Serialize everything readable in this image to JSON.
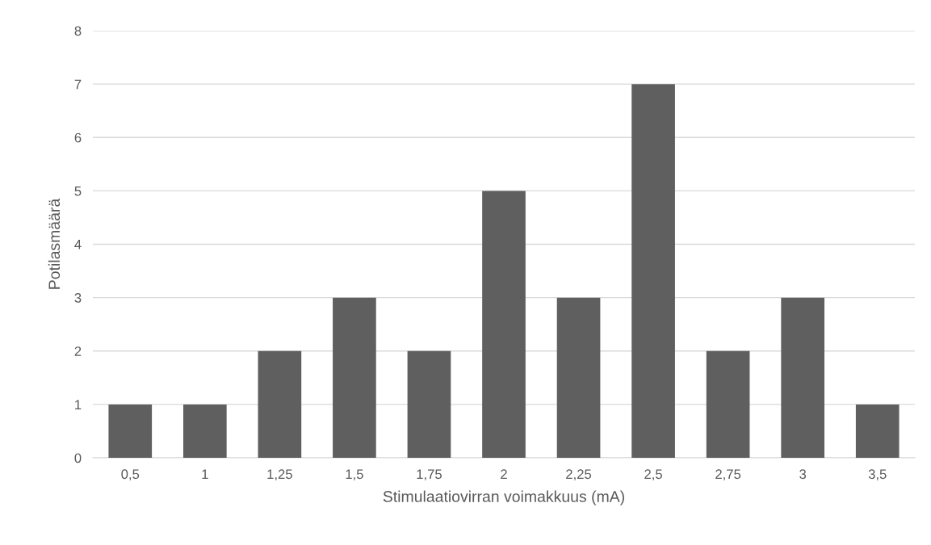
{
  "chart_data": {
    "type": "bar",
    "xlabel": "Stimulaatiovirran voimakkuus (mA)",
    "ylabel": "Potilasmäärä",
    "categories": [
      "0,5",
      "1",
      "1,25",
      "1,5",
      "1,75",
      "2",
      "2,25",
      "2,5",
      "2,75",
      "3",
      "3,5"
    ],
    "values": [
      1,
      1,
      2,
      3,
      2,
      5,
      3,
      7,
      2,
      3,
      1
    ],
    "color": "#5f5f5f",
    "ylim": [
      0,
      8
    ],
    "yticks": [
      0,
      1,
      2,
      3,
      4,
      5,
      6,
      7,
      8
    ],
    "grid": "y"
  }
}
